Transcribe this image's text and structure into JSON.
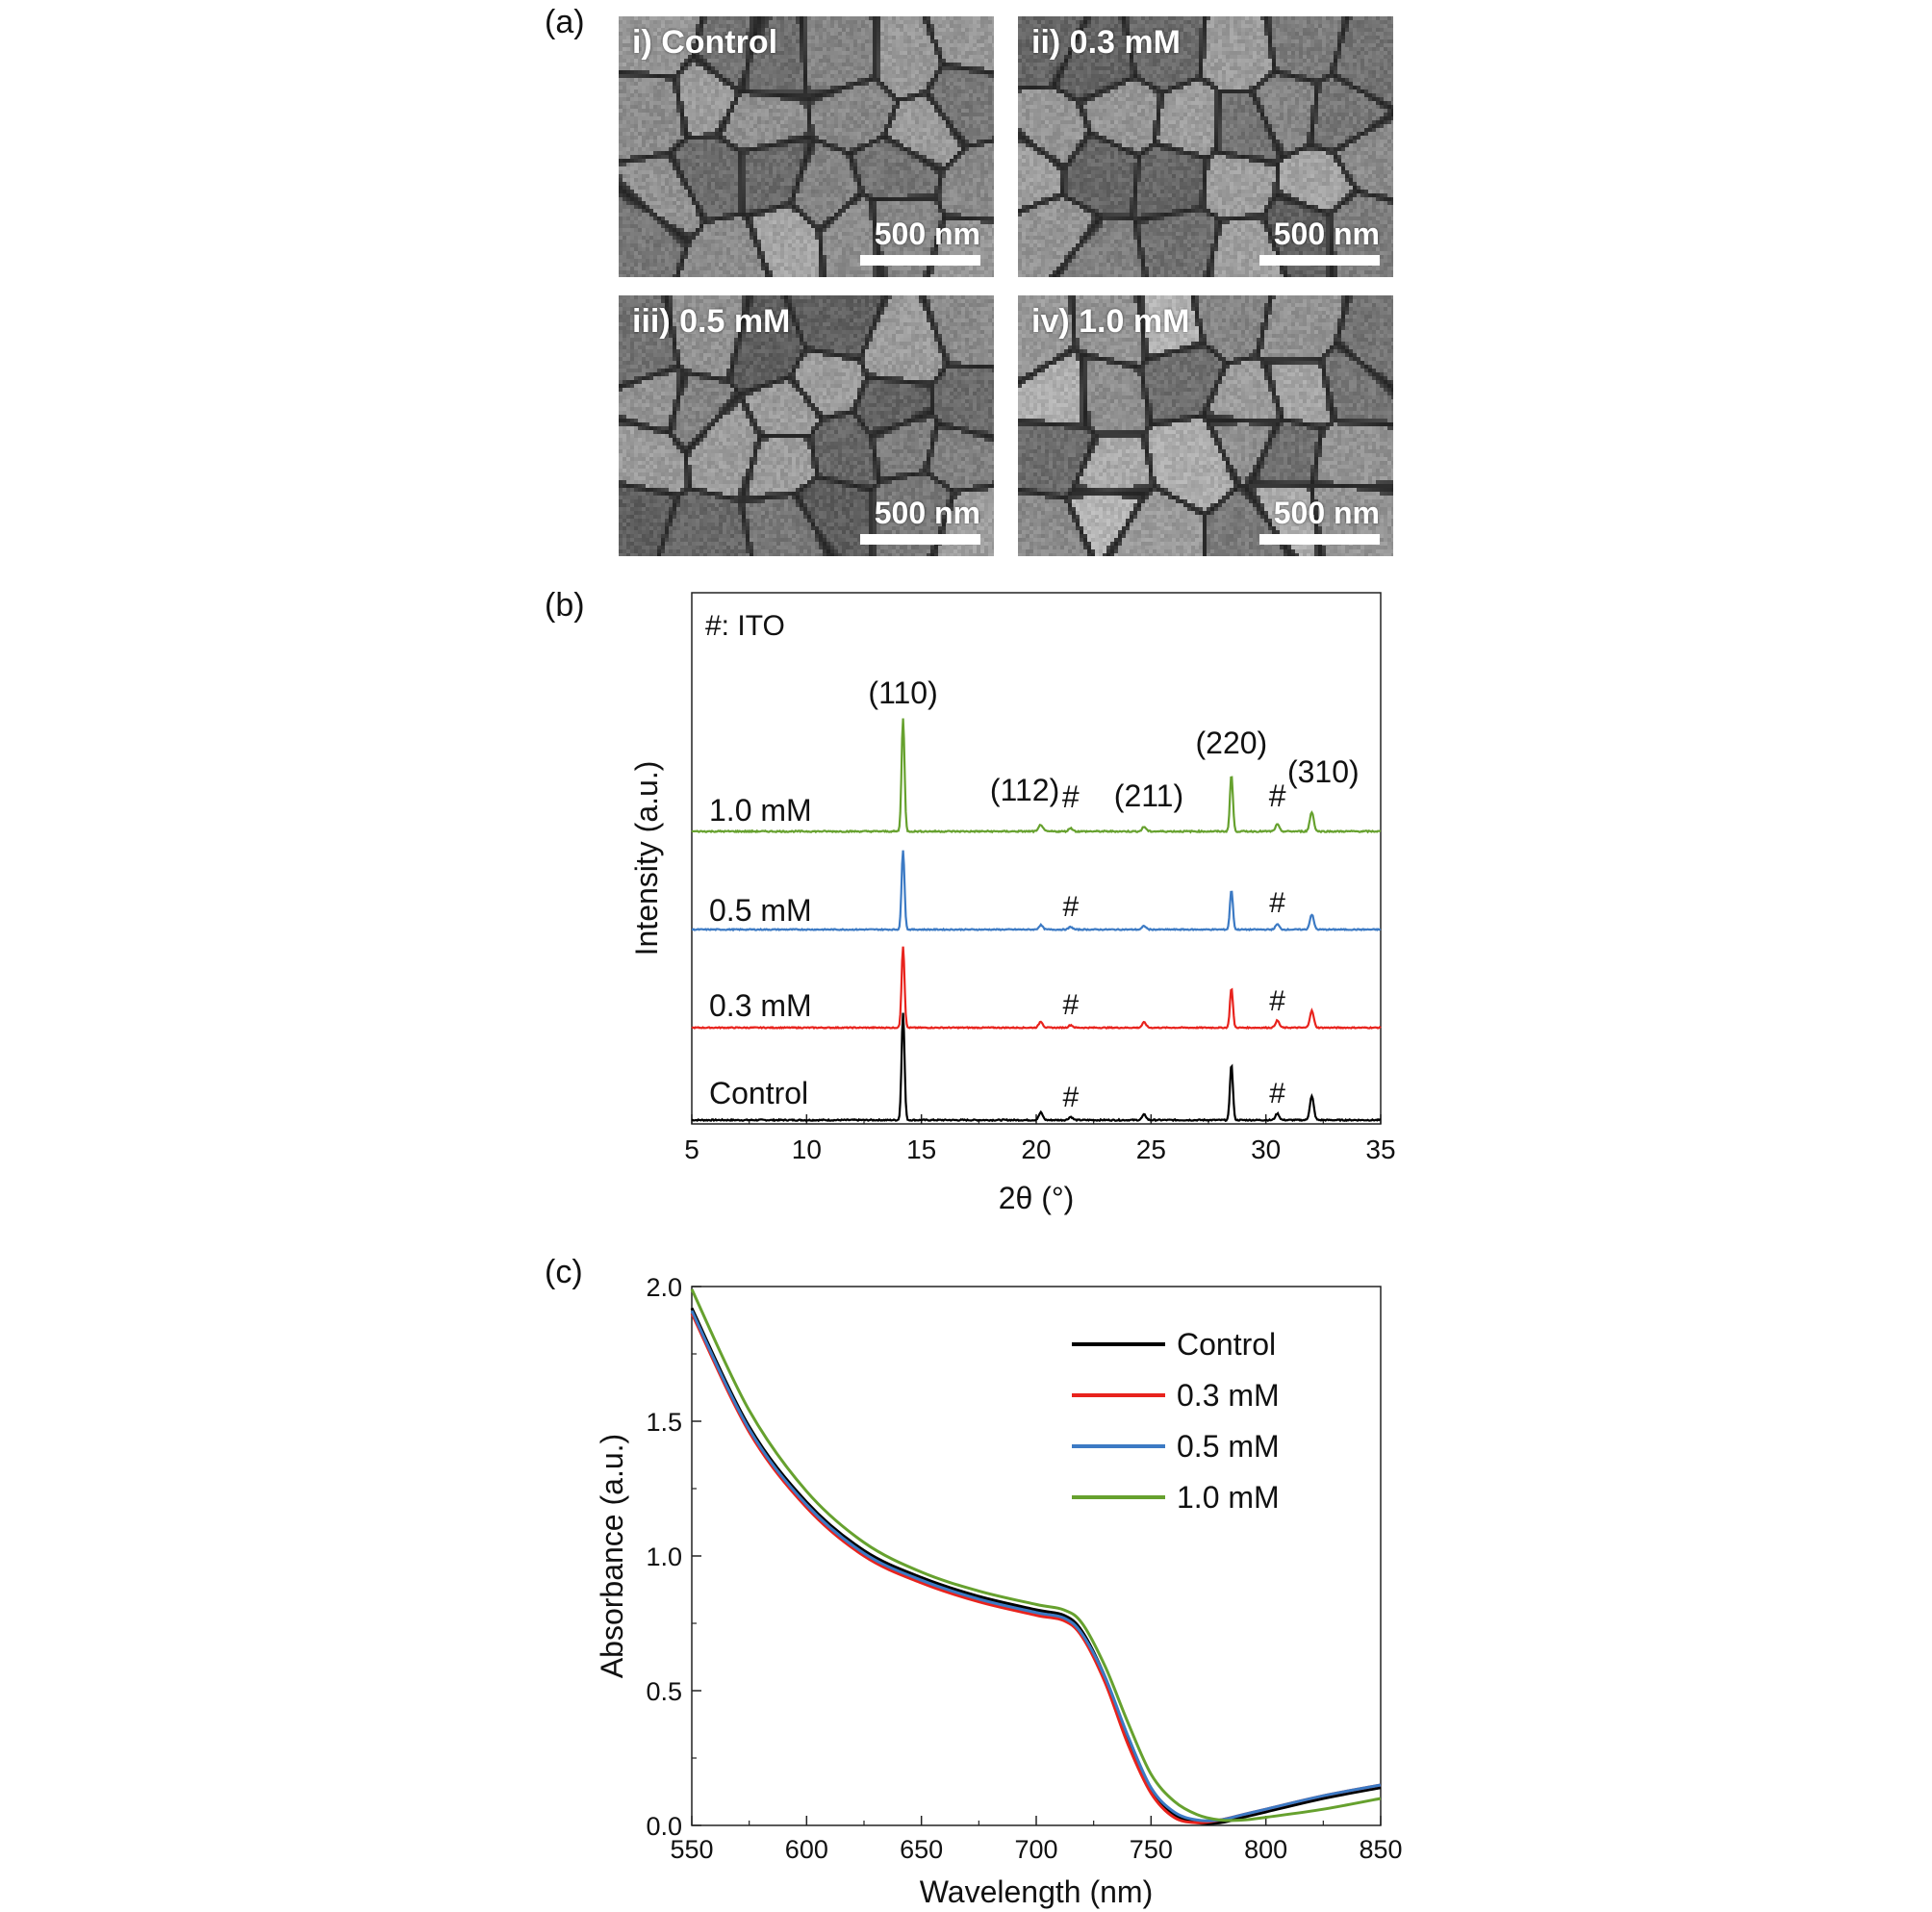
{
  "panel_a": {
    "letter": "(a)",
    "images": [
      {
        "label": "i) Control",
        "scale_text": "500 nm",
        "brightness": 1.0
      },
      {
        "label": "ii) 0.3 mM",
        "scale_text": "500 nm",
        "brightness": 1.03
      },
      {
        "label": "iii) 0.5 mM",
        "scale_text": "500 nm",
        "brightness": 0.97
      },
      {
        "label": "iv) 1.0 mM",
        "scale_text": "500 nm",
        "brightness": 1.12
      }
    ]
  },
  "panel_b": {
    "letter": "(b)"
  },
  "panel_c": {
    "letter": "(c)"
  },
  "chart_data": [
    {
      "type": "line",
      "xlabel": "2θ (°)",
      "ylabel": "Intensity (a.u.)",
      "xlim": [
        5,
        35
      ],
      "xticks": [
        5,
        10,
        15,
        20,
        25,
        30,
        35
      ],
      "note": "#: ITO",
      "series": [
        {
          "name": "Control",
          "color": "#000000",
          "peaks": [
            [
              14.2,
              1.0
            ],
            [
              20.2,
              0.07
            ],
            [
              21.5,
              0.03
            ],
            [
              24.7,
              0.05
            ],
            [
              28.5,
              0.52
            ],
            [
              30.5,
              0.06
            ],
            [
              32.0,
              0.22
            ]
          ]
        },
        {
          "name": "0.3 mM",
          "color": "#e8231d",
          "peaks": [
            [
              14.2,
              0.92
            ],
            [
              20.2,
              0.07
            ],
            [
              21.5,
              0.03
            ],
            [
              24.7,
              0.06
            ],
            [
              28.5,
              0.45
            ],
            [
              30.5,
              0.08
            ],
            [
              32.0,
              0.19
            ]
          ]
        },
        {
          "name": "0.5 mM",
          "color": "#3c7ac4",
          "peaks": [
            [
              14.2,
              0.9
            ],
            [
              20.2,
              0.05
            ],
            [
              21.5,
              0.03
            ],
            [
              24.7,
              0.04
            ],
            [
              28.5,
              0.45
            ],
            [
              30.5,
              0.06
            ],
            [
              32.0,
              0.17
            ]
          ]
        },
        {
          "name": "1.0 mM",
          "color": "#66a12e",
          "peaks": [
            [
              14.2,
              1.0
            ],
            [
              20.2,
              0.06
            ],
            [
              21.5,
              0.03
            ],
            [
              24.7,
              0.04
            ],
            [
              28.5,
              0.5
            ],
            [
              30.5,
              0.06
            ],
            [
              32.0,
              0.17
            ]
          ]
        }
      ],
      "annotations": [
        {
          "text": "(110)",
          "x": 14.2
        },
        {
          "text": "(112)",
          "x": 19.5
        },
        {
          "text": "#",
          "x": 21.5
        },
        {
          "text": "(211)",
          "x": 24.9
        },
        {
          "text": "(220)",
          "x": 28.5
        },
        {
          "text": "#",
          "x": 30.5
        },
        {
          "text": "(310)",
          "x": 32.5
        }
      ],
      "ito_marker": "#"
    },
    {
      "type": "line",
      "xlabel": "Wavelength (nm)",
      "ylabel": "Absorbance (a.u.)",
      "xlim": [
        550,
        850
      ],
      "ylim": [
        0,
        2.0
      ],
      "xticks": [
        550,
        600,
        650,
        700,
        750,
        800,
        850
      ],
      "yticks": [
        "0.0",
        "0.5",
        "1.0",
        "1.5",
        "2.0"
      ],
      "legend": "top-right",
      "series": [
        {
          "name": "Control",
          "color": "#000000",
          "x": [
            550,
            575,
            600,
            625,
            650,
            675,
            700,
            712,
            720,
            730,
            740,
            750,
            760,
            770,
            780,
            790,
            800,
            825,
            850
          ],
          "y": [
            1.92,
            1.48,
            1.2,
            1.02,
            0.92,
            0.85,
            0.8,
            0.78,
            0.72,
            0.55,
            0.32,
            0.13,
            0.04,
            0.01,
            0.01,
            0.03,
            0.05,
            0.1,
            0.14
          ]
        },
        {
          "name": "0.3 mM",
          "color": "#e8231d",
          "x": [
            550,
            575,
            600,
            625,
            650,
            675,
            700,
            712,
            720,
            730,
            740,
            750,
            760,
            770,
            780,
            790,
            800,
            825,
            850
          ],
          "y": [
            1.9,
            1.46,
            1.18,
            1.0,
            0.9,
            0.83,
            0.78,
            0.76,
            0.7,
            0.53,
            0.3,
            0.12,
            0.03,
            0.01,
            0.02,
            0.04,
            0.06,
            0.11,
            0.15
          ]
        },
        {
          "name": "0.5 mM",
          "color": "#3c7ac4",
          "x": [
            550,
            575,
            600,
            625,
            650,
            675,
            700,
            712,
            720,
            730,
            740,
            750,
            760,
            770,
            780,
            790,
            800,
            825,
            850
          ],
          "y": [
            1.91,
            1.47,
            1.19,
            1.01,
            0.91,
            0.84,
            0.79,
            0.77,
            0.71,
            0.55,
            0.33,
            0.14,
            0.05,
            0.02,
            0.02,
            0.04,
            0.06,
            0.11,
            0.15
          ]
        },
        {
          "name": "1.0 mM",
          "color": "#66a12e",
          "x": [
            550,
            575,
            600,
            625,
            650,
            675,
            700,
            712,
            720,
            730,
            740,
            750,
            760,
            770,
            780,
            790,
            800,
            825,
            850
          ],
          "y": [
            1.99,
            1.54,
            1.24,
            1.05,
            0.94,
            0.87,
            0.82,
            0.8,
            0.75,
            0.59,
            0.38,
            0.19,
            0.09,
            0.04,
            0.02,
            0.02,
            0.03,
            0.06,
            0.1
          ]
        }
      ]
    }
  ]
}
